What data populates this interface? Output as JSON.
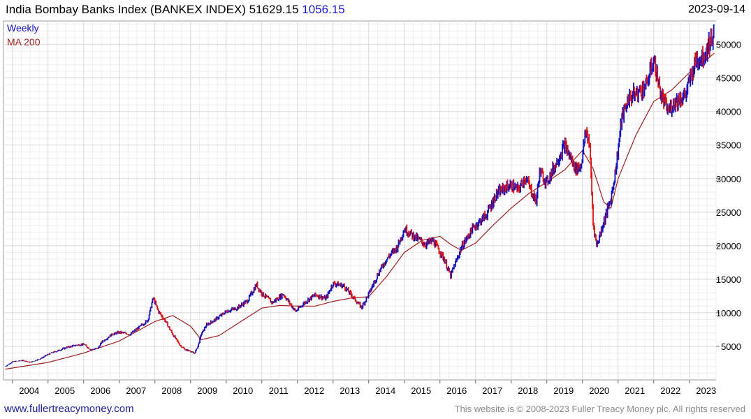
{
  "header": {
    "title": "India Bombay Banks Index (BANKEX INDEX) 51629.15",
    "change": "1056.15",
    "date": "2023-09-14"
  },
  "footer": {
    "site": "www.fullertreacymoney.com",
    "copyright": "This website is © 2008-2023 Fuller Treacy Money plc. All rights reserved"
  },
  "colors": {
    "up": "#1010c0",
    "down": "#e01010",
    "ma": "#a02020",
    "grid": "#d8d8d8"
  },
  "chart_data": {
    "type": "line",
    "legend": [
      {
        "label": "Weekly",
        "color": "#1010c0"
      },
      {
        "label": "MA 200",
        "color": "#a02020"
      }
    ],
    "legend_position": "top-left",
    "grid": true,
    "x_ticks": [
      "2004",
      "2005",
      "2006",
      "2007",
      "2008",
      "2009",
      "2010",
      "2011",
      "2012",
      "2013",
      "2014",
      "2015",
      "2016",
      "2017",
      "2018",
      "2019",
      "2020",
      "2021",
      "2022",
      "2023"
    ],
    "y_ticks": [
      5000,
      10000,
      15000,
      20000,
      25000,
      30000,
      35000,
      40000,
      45000,
      50000
    ],
    "ylim": [
      0,
      53500
    ],
    "xlim": [
      2003.75,
      2023.75
    ],
    "series": [
      {
        "name": "Weekly",
        "x": [
          2003.8,
          2004.0,
          2004.3,
          2004.5,
          2004.8,
          2005.0,
          2005.3,
          2005.5,
          2005.8,
          2006.0,
          2006.2,
          2006.4,
          2006.5,
          2006.8,
          2007.0,
          2007.3,
          2007.5,
          2007.8,
          2007.95,
          2008.1,
          2008.3,
          2008.5,
          2008.7,
          2008.85,
          2009.0,
          2009.1,
          2009.2,
          2009.3,
          2009.45,
          2009.7,
          2010.0,
          2010.3,
          2010.6,
          2010.85,
          2011.0,
          2011.3,
          2011.6,
          2011.95,
          2012.2,
          2012.5,
          2012.8,
          2013.0,
          2013.3,
          2013.6,
          2013.8,
          2014.0,
          2014.3,
          2014.5,
          2014.8,
          2015.0,
          2015.3,
          2015.6,
          2015.8,
          2016.1,
          2016.3,
          2016.6,
          2016.9,
          2017.0,
          2017.3,
          2017.6,
          2017.9,
          2018.0,
          2018.2,
          2018.4,
          2018.7,
          2018.8,
          2019.0,
          2019.3,
          2019.5,
          2019.8,
          2019.95,
          2020.1,
          2020.2,
          2020.3,
          2020.4,
          2020.6,
          2020.8,
          2020.95,
          2021.1,
          2021.3,
          2021.6,
          2021.8,
          2022.0,
          2022.2,
          2022.4,
          2022.6,
          2022.9,
          2023.0,
          2023.2,
          2023.4,
          2023.6,
          2023.7
        ],
        "values": [
          2000,
          2700,
          2900,
          2600,
          3200,
          3800,
          4400,
          4800,
          5200,
          5300,
          4500,
          4700,
          5600,
          6800,
          7100,
          6800,
          7600,
          8900,
          12200,
          10200,
          8700,
          6800,
          5200,
          4500,
          4300,
          3900,
          4900,
          6800,
          8200,
          9000,
          10200,
          10700,
          11800,
          14200,
          12900,
          11500,
          12800,
          10200,
          11500,
          12700,
          12100,
          14400,
          14000,
          12100,
          10800,
          12800,
          16200,
          18000,
          19800,
          22500,
          21300,
          20200,
          20800,
          18200,
          15500,
          19700,
          22400,
          23000,
          24600,
          27800,
          28800,
          29000,
          28300,
          30200,
          26500,
          31000,
          29400,
          32800,
          35000,
          31500,
          31800,
          37200,
          35200,
          23400,
          20000,
          23600,
          27000,
          32000,
          39000,
          42000,
          43000,
          44000,
          47800,
          42500,
          40000,
          41500,
          42500,
          44500,
          47800,
          48200,
          50600,
          51629
        ],
        "color": "#1010c0"
      },
      {
        "name": "MA 200",
        "x": [
          2003.8,
          2005.0,
          2006.0,
          2007.0,
          2008.0,
          2008.5,
          2009.0,
          2009.3,
          2009.8,
          2010.5,
          2011.0,
          2011.5,
          2012.0,
          2012.5,
          2013.0,
          2013.5,
          2014.0,
          2014.5,
          2015.0,
          2015.5,
          2016.0,
          2016.3,
          2016.6,
          2017.0,
          2017.5,
          2018.0,
          2018.5,
          2019.0,
          2019.5,
          2020.0,
          2020.3,
          2020.6,
          2020.8,
          2021.0,
          2021.5,
          2022.0,
          2022.5,
          2023.0,
          2023.5,
          2023.7
        ],
        "values": [
          1600,
          2600,
          4000,
          5800,
          8700,
          9600,
          8000,
          6000,
          6600,
          9000,
          10700,
          11100,
          11000,
          11000,
          11700,
          12200,
          12400,
          15400,
          19000,
          20800,
          21400,
          20200,
          19300,
          20400,
          23100,
          25600,
          27800,
          29500,
          31300,
          34200,
          31500,
          26500,
          25600,
          30000,
          36500,
          41500,
          43200,
          45800,
          47800,
          48700
        ],
        "color": "#a02020"
      }
    ]
  }
}
